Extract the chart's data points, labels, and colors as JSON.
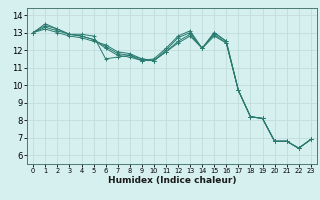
{
  "xlabel": "Humidex (Indice chaleur)",
  "ylabel": "",
  "background_color": "#d6f0ef",
  "grid_color": "#c0dcdc",
  "line_color": "#2a7a6f",
  "x_values": [
    0,
    1,
    2,
    3,
    4,
    5,
    6,
    7,
    8,
    9,
    10,
    11,
    12,
    13,
    14,
    15,
    16,
    17,
    18,
    19,
    20,
    21,
    22,
    23
  ],
  "series": [
    [
      13.0,
      13.5,
      13.2,
      12.9,
      12.9,
      12.8,
      11.5,
      11.6,
      11.7,
      11.4,
      11.5,
      12.1,
      12.8,
      13.1,
      12.1,
      13.0,
      12.5,
      9.7,
      8.2,
      8.1,
      6.8,
      6.8,
      6.4,
      6.9
    ],
    [
      13.0,
      13.4,
      13.2,
      12.9,
      12.8,
      12.6,
      12.1,
      11.7,
      11.6,
      11.4,
      11.4,
      12.0,
      12.7,
      13.0,
      12.1,
      13.0,
      12.5,
      9.7,
      8.2,
      8.1,
      6.8,
      6.8,
      6.4,
      6.9
    ],
    [
      13.0,
      13.3,
      13.1,
      12.9,
      12.8,
      12.6,
      12.2,
      11.8,
      11.7,
      11.5,
      11.4,
      11.9,
      12.5,
      12.9,
      12.1,
      12.9,
      12.4,
      9.7,
      8.2,
      8.1,
      6.8,
      6.8,
      6.4,
      6.9
    ],
    [
      13.0,
      13.2,
      13.0,
      12.8,
      12.7,
      12.5,
      12.3,
      11.9,
      11.8,
      11.5,
      11.4,
      11.9,
      12.4,
      12.8,
      12.1,
      12.8,
      12.4,
      9.7,
      8.2,
      8.1,
      6.8,
      6.8,
      6.4,
      6.9
    ]
  ],
  "ylim": [
    5.5,
    14.4
  ],
  "xlim": [
    -0.5,
    23.5
  ],
  "yticks": [
    6,
    7,
    8,
    9,
    10,
    11,
    12,
    13,
    14
  ],
  "xticks": [
    0,
    1,
    2,
    3,
    4,
    5,
    6,
    7,
    8,
    9,
    10,
    11,
    12,
    13,
    14,
    15,
    16,
    17,
    18,
    19,
    20,
    21,
    22,
    23
  ],
  "xlabel_fontsize": 6.5,
  "xtick_fontsize": 4.8,
  "ytick_fontsize": 6.0
}
